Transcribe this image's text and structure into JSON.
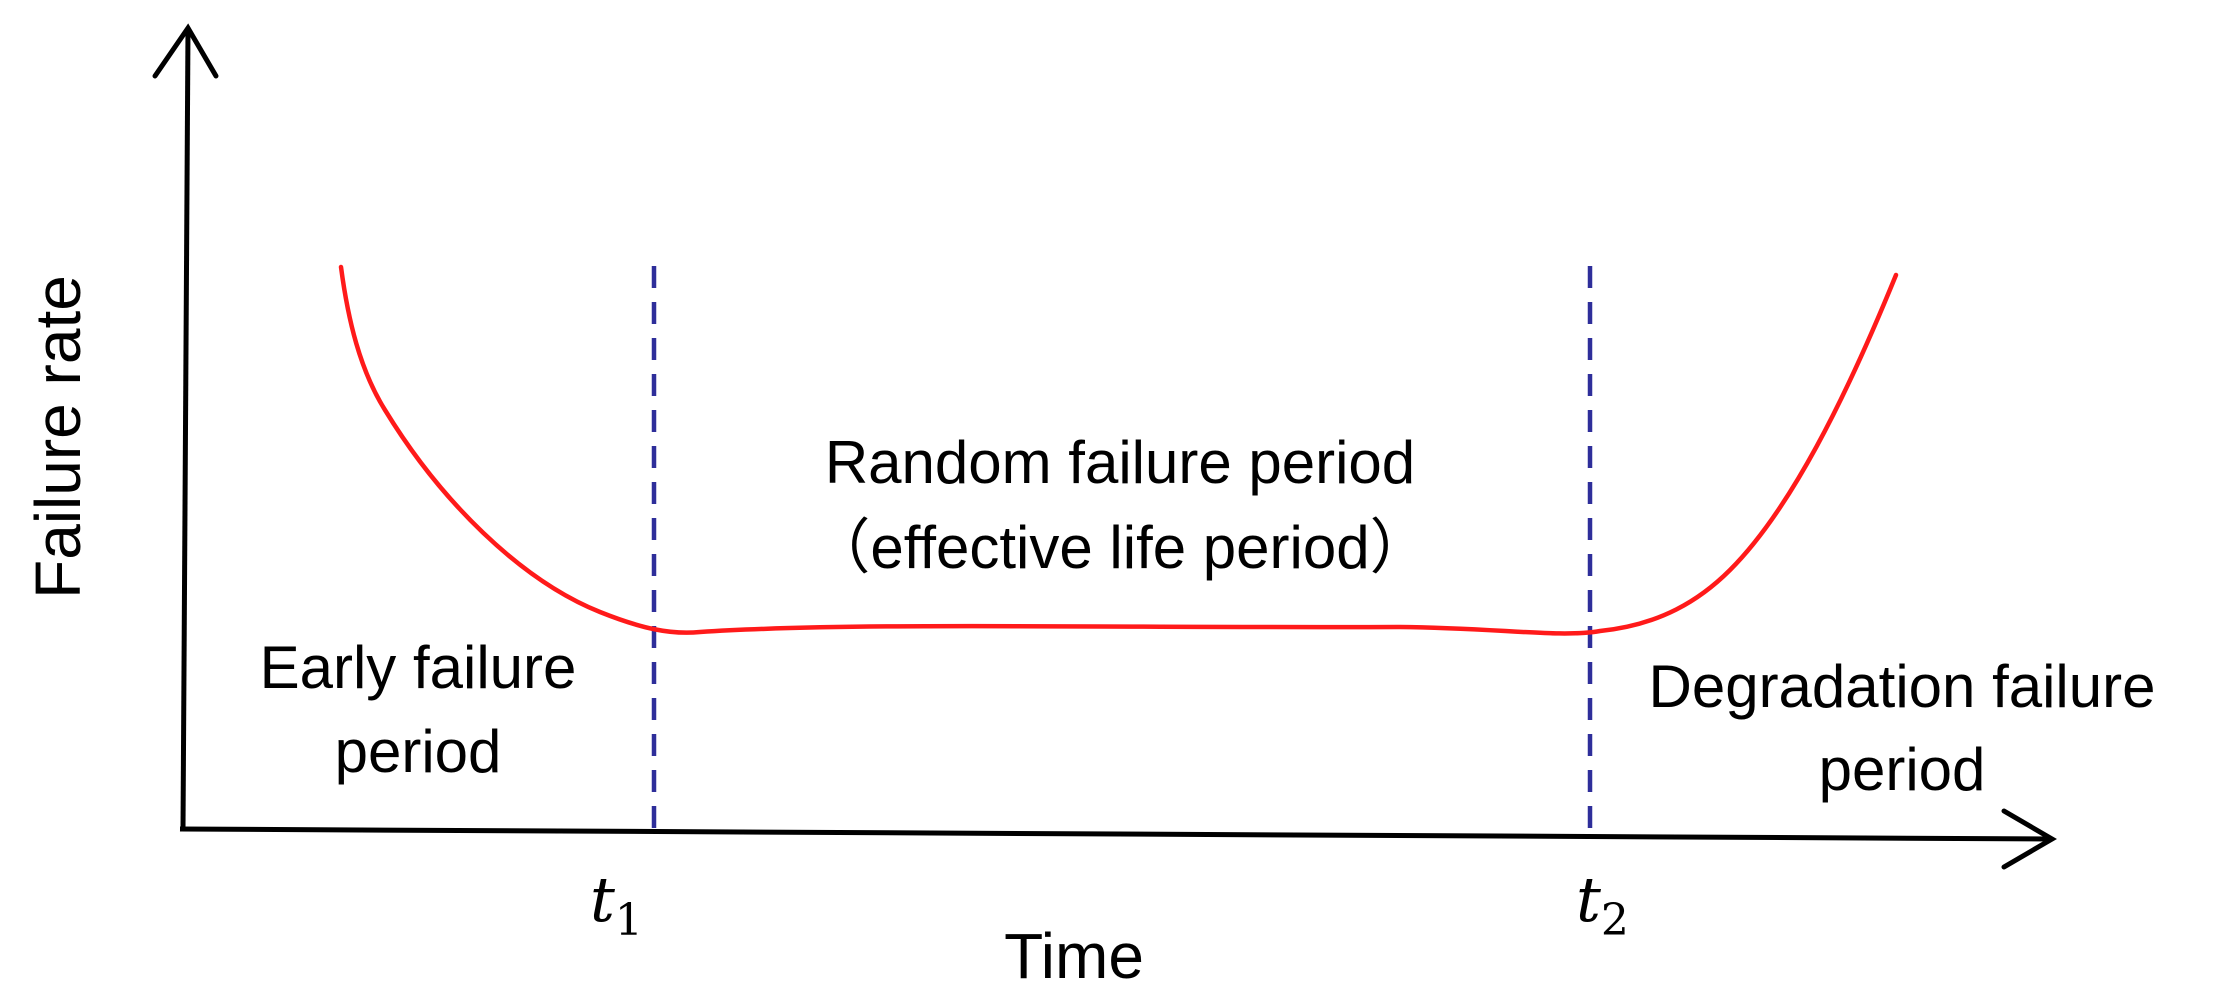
{
  "axes": {
    "y_label": "Failure rate",
    "x_label": "Time"
  },
  "markers": [
    {
      "name": "t",
      "sub": "1"
    },
    {
      "name": "t",
      "sub": "2"
    }
  ],
  "regions": {
    "early": [
      "Early failure",
      "period"
    ],
    "random": [
      "Random failure period",
      "（effective life period）"
    ],
    "degradation": [
      "Degradation failure",
      "period"
    ]
  },
  "colors": {
    "curve": "#ff1a1a",
    "divider": "#2e2e9a",
    "axis": "#000000"
  },
  "icons": {
    "y_axis": "arrow-up",
    "x_axis": "arrow-right"
  }
}
